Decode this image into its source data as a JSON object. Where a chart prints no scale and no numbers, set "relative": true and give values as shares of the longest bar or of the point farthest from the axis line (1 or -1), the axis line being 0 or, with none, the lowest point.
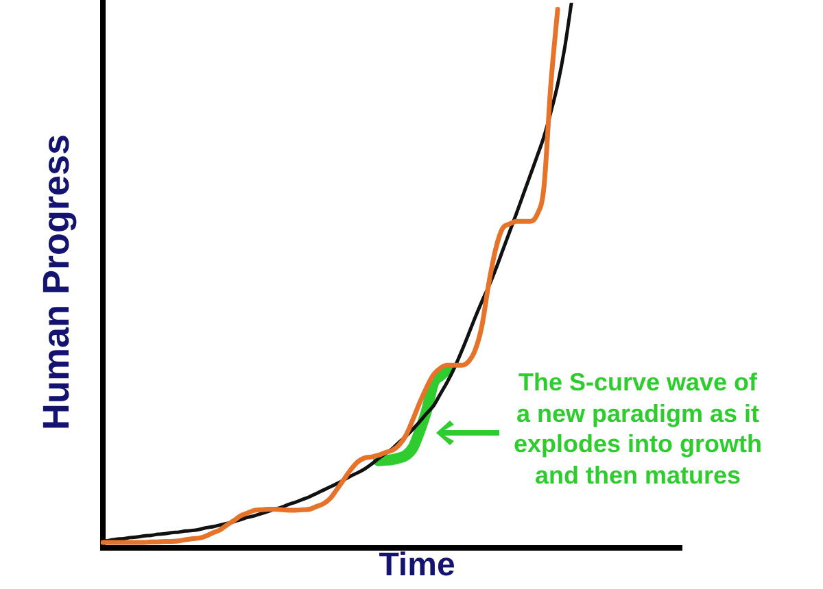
{
  "chart_data": {
    "type": "line",
    "relative": true,
    "xlabel": "Time",
    "ylabel": "Human Progress",
    "annotations": [
      "The S-curve wave of a new paradigm as it explodes into growth and then matures"
    ],
    "categories": [
      null,
      null,
      null,
      null,
      null,
      null,
      null,
      null,
      null,
      null,
      null,
      null,
      null,
      null,
      null,
      null,
      null,
      null,
      null,
      null,
      null,
      null,
      null,
      null,
      null,
      null,
      null,
      null,
      null,
      null,
      null,
      null,
      null,
      null,
      null,
      null,
      null,
      null,
      null,
      null,
      null,
      null,
      null,
      null,
      null,
      null,
      null,
      null,
      null,
      null,
      null,
      null,
      null,
      null,
      null,
      null,
      null,
      null,
      null,
      null,
      null,
      null,
      null,
      null,
      null,
      null,
      null,
      null,
      null,
      null,
      null,
      null,
      null,
      null,
      null,
      null,
      null,
      null,
      null,
      null,
      null,
      null,
      null,
      null,
      null
    ],
    "series": [
      {
        "color": "#2ecc2e",
        "values": [
          null,
          null,
          null,
          null,
          null,
          null,
          null,
          null,
          null,
          null,
          null,
          null,
          null,
          null,
          null,
          null,
          null,
          null,
          null,
          null,
          null,
          null,
          null,
          null,
          null,
          null,
          null,
          null,
          null,
          null,
          null,
          null,
          null,
          null,
          null,
          null,
          null,
          null,
          null,
          null,
          0.16,
          0.161,
          0.162,
          0.165,
          0.17,
          0.184,
          0.215,
          0.253,
          0.303,
          0.316,
          0.327,
          null,
          null,
          null,
          null,
          null,
          null,
          null,
          null,
          null,
          null,
          null,
          null,
          null,
          null,
          null,
          null,
          null,
          null,
          null,
          null,
          null,
          null,
          null,
          null,
          null,
          null,
          null,
          null,
          null,
          null,
          null,
          null,
          null,
          null
        ]
      },
      {
        "color": "#111111",
        "values": [
          0.012,
          0.014,
          0.016,
          0.017,
          0.019,
          0.02,
          0.022,
          0.023,
          0.025,
          0.026,
          0.028,
          0.029,
          0.031,
          0.032,
          0.034,
          0.037,
          0.039,
          0.042,
          0.045,
          0.048,
          0.052,
          0.056,
          0.059,
          0.063,
          0.067,
          0.071,
          0.075,
          0.08,
          0.084,
          0.089,
          0.094,
          0.1,
          0.106,
          0.112,
          0.118,
          0.125,
          0.132,
          0.138,
          0.145,
          0.154,
          0.164,
          0.173,
          0.182,
          0.194,
          0.205,
          0.218,
          0.232,
          0.247,
          0.261,
          0.283,
          0.305,
          0.33,
          0.359,
          0.39,
          0.422,
          0.452,
          0.48,
          0.511,
          0.545,
          0.579,
          0.613,
          0.648,
          0.683,
          0.718,
          0.754,
          0.799,
          0.85,
          0.916,
          1,
          null,
          null,
          null,
          null,
          null,
          null,
          null,
          null,
          null,
          null,
          null,
          null,
          null,
          null,
          null,
          null
        ]
      },
      {
        "color": "#e6732a",
        "values": [
          0.01,
          0.01,
          0.01,
          0.01,
          0.01,
          0.01,
          0.01,
          0.011,
          0.011,
          0.012,
          0.012,
          0.013,
          0.015,
          0.017,
          0.018,
          0.022,
          0.028,
          0.033,
          0.042,
          0.05,
          0.059,
          0.064,
          0.069,
          0.07,
          0.071,
          0.071,
          0.07,
          0.069,
          0.069,
          0.07,
          0.071,
          0.076,
          0.081,
          0.091,
          0.108,
          0.126,
          0.144,
          0.158,
          0.165,
          0.167,
          0.17,
          0.175,
          0.179,
          0.189,
          0.207,
          0.236,
          0.267,
          0.295,
          0.318,
          0.33,
          0.335,
          0.335,
          0.335,
          0.341,
          0.362,
          0.407,
          0.485,
          0.548,
          0.586,
          0.594,
          0.599,
          0.599,
          0.599,
          0.611,
          0.661,
          0.849,
          0.988,
          null,
          null,
          null,
          null,
          null,
          null,
          null,
          null,
          null,
          null,
          null,
          null,
          null,
          null,
          null,
          null,
          null,
          null
        ]
      }
    ],
    "grid": false,
    "legend": false,
    "marker": "none",
    "line_style": "solid"
  }
}
